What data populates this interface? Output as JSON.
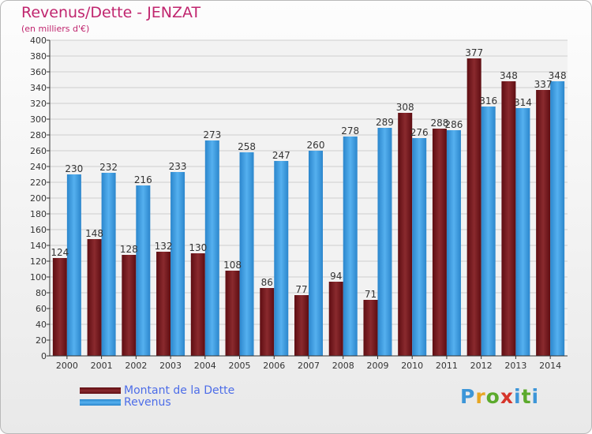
{
  "header": {
    "title": "Revenus/Dette - JENZAT",
    "subtitle": "(en milliers d'€)"
  },
  "legend": {
    "debt_label": "Montant de la Dette",
    "revenue_label": "Revenus"
  },
  "brand": {
    "letters": [
      "P",
      "r",
      "o",
      "x",
      "i",
      "t",
      "i"
    ],
    "colors": [
      "#3d96d8",
      "#e7a623",
      "#5caa2c",
      "#d6352b",
      "#3d96d8",
      "#5caa2c",
      "#3d96d8"
    ]
  },
  "colors": {
    "debt": "#7a1b1f",
    "revenue": "#3f9fe1"
  },
  "chart_data": {
    "type": "bar",
    "title": "Revenus/Dette - JENZAT",
    "subtitle": "(en milliers d'€)",
    "categories": [
      "2000",
      "2001",
      "2002",
      "2003",
      "2004",
      "2005",
      "2006",
      "2007",
      "2008",
      "2009",
      "2010",
      "2011",
      "2012",
      "2013",
      "2014"
    ],
    "series": [
      {
        "name": "Montant de la Dette",
        "values": [
          124,
          148,
          128,
          132,
          130,
          108,
          86,
          77,
          94,
          71,
          308,
          288,
          377,
          348,
          337
        ]
      },
      {
        "name": "Revenus",
        "values": [
          230,
          232,
          216,
          233,
          273,
          258,
          247,
          260,
          278,
          289,
          276,
          286,
          316,
          314,
          348
        ]
      }
    ],
    "ylim": [
      0,
      400
    ],
    "ytick_step": 20,
    "grid": true,
    "legend_position": "bottom-left"
  }
}
